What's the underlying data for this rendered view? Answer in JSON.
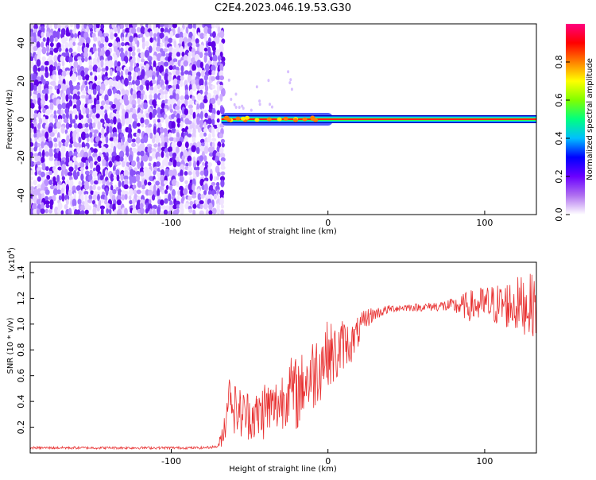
{
  "title": "C2E4.2023.046.19.53.G30",
  "chart_data": [
    {
      "type": "heatmap",
      "xlabel": "Height of straight line (km)",
      "ylabel": "Frequency (Hz)",
      "xlim": [
        -190,
        133
      ],
      "ylim": [
        -50,
        50
      ],
      "x_ticks": [
        -100,
        0,
        100
      ],
      "x_tick_labels": [
        "-100",
        "0",
        "100"
      ],
      "y_ticks": [
        -40,
        -20,
        0,
        20,
        40
      ],
      "y_tick_labels": [
        "-40",
        "-20",
        "0",
        "20",
        "40"
      ],
      "noise_region_x": [
        -190,
        -68
      ],
      "signal_line": {
        "frequency": 0,
        "x_start": -68,
        "x_end": 133
      },
      "colorbar": {
        "label": "Normalized spectral amplitude",
        "range": [
          0,
          1
        ],
        "ticks": [
          0.0,
          0.2,
          0.4,
          0.6,
          0.8
        ],
        "tick_labels": [
          "0.0",
          "0.2",
          "0.4",
          "0.6",
          "0.8"
        ],
        "colormap": [
          "#ffffff",
          "#b070f0",
          "#6a00ff",
          "#0000ff",
          "#00bfff",
          "#00ff80",
          "#80ff00",
          "#ffff00",
          "#ff8000",
          "#ff0000",
          "#ff0080"
        ]
      },
      "grid": false
    },
    {
      "type": "line",
      "xlabel": "Height of straight line (km)",
      "ylabel": "SNR (10 * v/v)",
      "y_multiplier": "(x10",
      "y_multiplier_exp": "4",
      "y_multiplier_close": ")",
      "xlim": [
        -190,
        133
      ],
      "ylim": [
        0,
        1.48
      ],
      "x_ticks": [
        -100,
        0,
        100
      ],
      "x_tick_labels": [
        "-100",
        "0",
        "100"
      ],
      "y_ticks": [
        0.2,
        0.4,
        0.6,
        0.8,
        1.0,
        1.2,
        1.4
      ],
      "y_tick_labels": [
        "0.2",
        "0.4",
        "0.6",
        "0.8",
        "1.0",
        "1.2",
        "1.4"
      ],
      "color": "#e83030",
      "grid": false,
      "series": [
        {
          "x": [
            -190,
            -150,
            -110,
            -80,
            -70,
            -66,
            -63,
            -60,
            -55,
            -50,
            -45,
            -40,
            -35,
            -30,
            -25,
            -20,
            -15,
            -10,
            -5,
            0,
            5,
            10,
            15,
            20,
            25,
            30,
            40,
            50,
            60,
            70,
            80,
            90,
            100,
            110,
            120,
            133
          ],
          "y": [
            0.04,
            0.04,
            0.04,
            0.04,
            0.05,
            0.2,
            0.5,
            0.35,
            0.3,
            0.3,
            0.28,
            0.35,
            0.35,
            0.4,
            0.5,
            0.45,
            0.55,
            0.6,
            0.7,
            0.78,
            0.75,
            0.85,
            0.85,
            0.95,
            1.05,
            1.08,
            1.12,
            1.13,
            1.13,
            1.14,
            1.14,
            1.14,
            1.15,
            1.15,
            1.15,
            1.15
          ],
          "spread": [
            0.01,
            0.01,
            0.01,
            0.01,
            0.01,
            0.15,
            0.1,
            0.2,
            0.2,
            0.2,
            0.2,
            0.25,
            0.2,
            0.25,
            0.25,
            0.3,
            0.25,
            0.3,
            0.3,
            0.25,
            0.25,
            0.2,
            0.15,
            0.12,
            0.08,
            0.05,
            0.03,
            0.03,
            0.03,
            0.04,
            0.06,
            0.12,
            0.15,
            0.17,
            0.22,
            0.25
          ]
        }
      ]
    }
  ]
}
